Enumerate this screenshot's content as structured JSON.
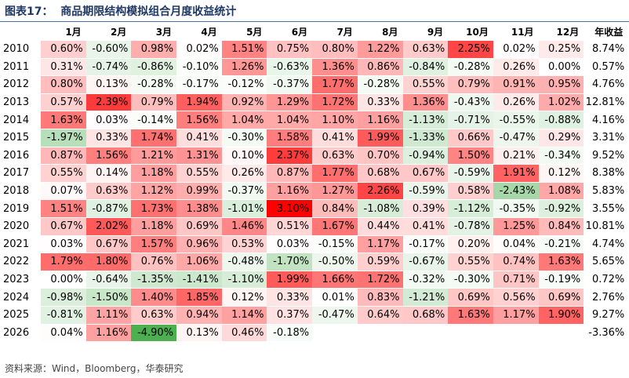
{
  "header": {
    "title": "图表17：  商品期限结构模拟组合月度收益统计"
  },
  "table": {
    "columns": [
      "",
      "1月",
      "2月",
      "3月",
      "4月",
      "5月",
      "6月",
      "7月",
      "8月",
      "9月",
      "10月",
      "11月",
      "12月",
      "年收益"
    ],
    "rows": [
      [
        "2010",
        "0.60%",
        "-0.60%",
        "0.98%",
        "0.02%",
        "1.51%",
        "0.75%",
        "0.80%",
        "1.22%",
        "0.63%",
        "2.25%",
        "0.02%",
        "0.25%",
        "8.74%"
      ],
      [
        "2011",
        "0.31%",
        "-0.74%",
        "-0.86%",
        "-0.10%",
        "1.26%",
        "-0.63%",
        "1.36%",
        "0.86%",
        "-0.84%",
        "-0.28%",
        "0.26%",
        "0.00%",
        "0.57%"
      ],
      [
        "2012",
        "0.80%",
        "0.13%",
        "-0.28%",
        "-0.17%",
        "-0.12%",
        "-0.37%",
        "1.77%",
        "-0.28%",
        "0.55%",
        "0.79%",
        "0.91%",
        "0.95%",
        "4.76%"
      ],
      [
        "2013",
        "0.57%",
        "2.39%",
        "0.79%",
        "1.94%",
        "0.92%",
        "1.29%",
        "1.72%",
        "0.33%",
        "1.36%",
        "-0.43%",
        "0.26%",
        "1.02%",
        "12.81%"
      ],
      [
        "2014",
        "1.63%",
        "0.03%",
        "-0.14%",
        "1.56%",
        "1.04%",
        "1.04%",
        "1.10%",
        "1.16%",
        "-1.13%",
        "-0.71%",
        "-0.55%",
        "-0.88%",
        "4.16%"
      ],
      [
        "2015",
        "-1.97%",
        "0.33%",
        "1.74%",
        "0.41%",
        "-0.30%",
        "1.58%",
        "0.41%",
        "1.99%",
        "-1.33%",
        "0.66%",
        "-0.47%",
        "0.29%",
        "3.31%"
      ],
      [
        "2016",
        "0.87%",
        "1.56%",
        "1.21%",
        "1.31%",
        "0.10%",
        "2.37%",
        "0.63%",
        "0.70%",
        "-0.94%",
        "1.50%",
        "0.21%",
        "-0.34%",
        "9.52%"
      ],
      [
        "2017",
        "0.55%",
        "0.14%",
        "1.18%",
        "0.55%",
        "0.26%",
        "0.87%",
        "1.77%",
        "0.68%",
        "0.67%",
        "-0.59%",
        "1.91%",
        "0.12%",
        "8.38%"
      ],
      [
        "2018",
        "0.07%",
        "0.63%",
        "1.12%",
        "0.99%",
        "-0.37%",
        "1.16%",
        "1.27%",
        "2.26%",
        "-0.59%",
        "0.58%",
        "-2.43%",
        "1.08%",
        "5.83%"
      ],
      [
        "2019",
        "1.51%",
        "-0.87%",
        "1.73%",
        "1.38%",
        "-1.01%",
        "3.10%",
        "0.84%",
        "-1.08%",
        "0.39%",
        "-1.12%",
        "-0.35%",
        "-0.92%",
        "3.55%"
      ],
      [
        "2020",
        "0.67%",
        "2.02%",
        "1.18%",
        "0.69%",
        "1.46%",
        "0.51%",
        "1.67%",
        "0.44%",
        "0.41%",
        "-0.78%",
        "1.25%",
        "0.84%",
        "10.81%"
      ],
      [
        "2021",
        "0.03%",
        "0.67%",
        "1.57%",
        "0.96%",
        "0.53%",
        "0.03%",
        "-0.15%",
        "1.17%",
        "-0.17%",
        "0.20%",
        "0.04%",
        "-0.21%",
        "4.74%"
      ],
      [
        "2022",
        "1.79%",
        "1.80%",
        "0.76%",
        "1.06%",
        "-0.48%",
        "-1.70%",
        "-0.50%",
        "0.59%",
        "-0.67%",
        "0.55%",
        "0.74%",
        "1.63%",
        "5.65%"
      ],
      [
        "2023",
        "0.00%",
        "-0.64%",
        "-1.35%",
        "-1.41%",
        "-1.10%",
        "1.99%",
        "1.66%",
        "1.72%",
        "-0.32%",
        "-0.30%",
        "0.71%",
        "-0.19%",
        "0.72%"
      ],
      [
        "2024",
        "-0.98%",
        "-1.50%",
        "1.40%",
        "1.85%",
        "0.12%",
        "0.33%",
        "0.01%",
        "0.83%",
        "-1.21%",
        "0.69%",
        "0.56%",
        "0.69%",
        "2.76%"
      ],
      [
        "2025",
        "-0.81%",
        "1.11%",
        "0.63%",
        "0.94%",
        "1.14%",
        "0.37%",
        "-0.47%",
        "0.64%",
        "0.68%",
        "1.63%",
        "1.17%",
        "1.90%",
        "9.27%"
      ],
      [
        "2026",
        "0.04%",
        "1.16%",
        "-4.90%",
        "0.13%",
        "0.46%",
        "-0.18%",
        null,
        null,
        null,
        null,
        null,
        null,
        "-3.36%"
      ]
    ]
  },
  "footer": {
    "source": "资料来源：Wind，Bloomberg，华泰研究"
  }
}
